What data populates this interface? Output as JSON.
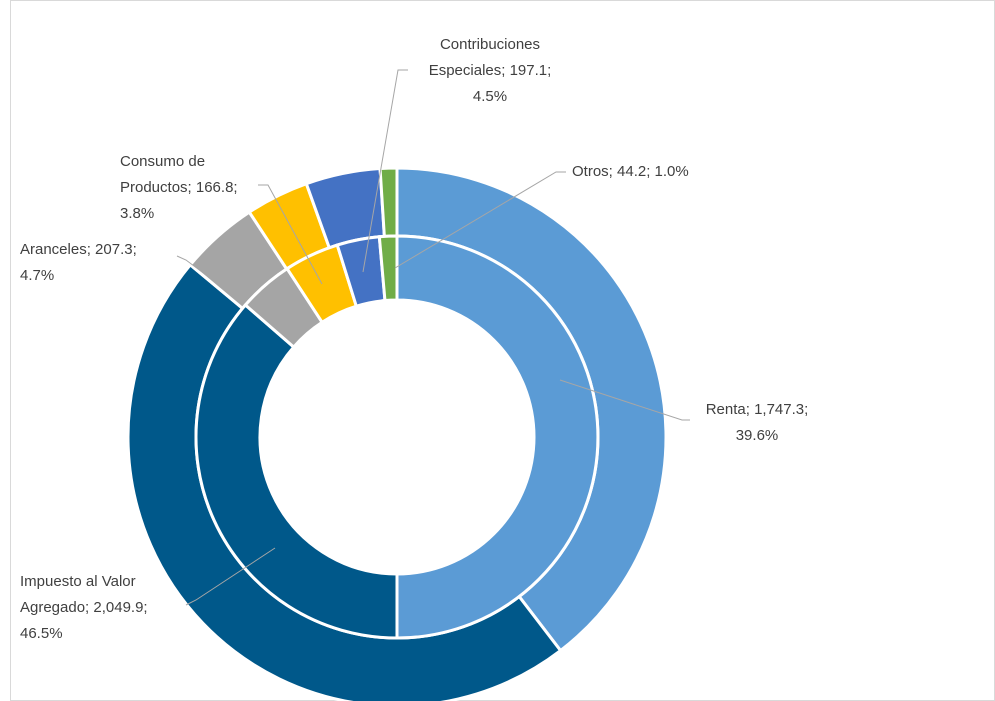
{
  "chart_data": {
    "type": "doughnut",
    "categories": [
      "Renta",
      "Impuesto al Valor Agregado",
      "Aranceles",
      "Consumo de Productos",
      "Contribuciones Especiales",
      "Otros"
    ],
    "colors": [
      "#5b9bd5",
      "#00588a",
      "#a5a5a5",
      "#ffc000",
      "#4472c4",
      "#70ad47"
    ],
    "series": [
      {
        "values": [
          1747.3,
          2049.9,
          207.3,
          166.8,
          197.1,
          44.2
        ]
      },
      {
        "values": [
          50.0,
          36.4,
          4.4,
          4.4,
          3.4,
          1.4
        ]
      }
    ],
    "data_labels": [
      [
        "Renta; 1,747.3;",
        "39.6%"
      ],
      [
        "Impuesto al Valor",
        "Agregado; 2,049.9;",
        "46.5%"
      ],
      [
        "Aranceles; 207.3;",
        "4.7%"
      ],
      [
        "Consumo de",
        "Productos; 166.8;",
        "3.8%"
      ],
      [
        "Contribuciones",
        "Especiales; 197.1;",
        "4.5%"
      ],
      [
        "Otros; 44.2; 1.0%"
      ]
    ]
  }
}
